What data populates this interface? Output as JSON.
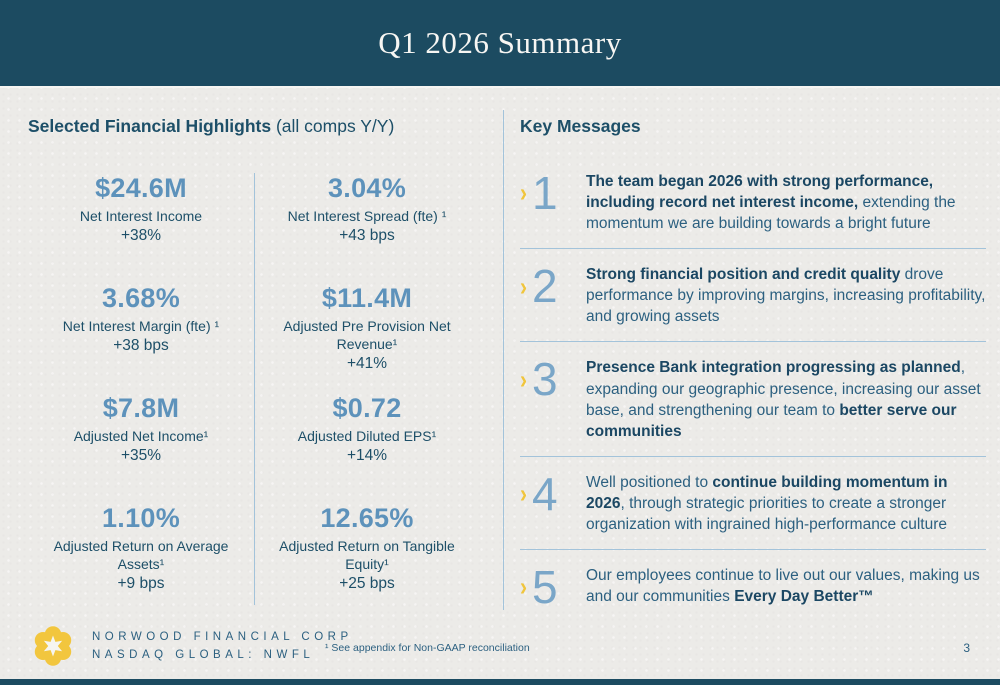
{
  "header": {
    "title": "Q1 2026 Summary"
  },
  "highlights": {
    "heading": "Selected Financial Highlights",
    "heading_suffix": " (all comps Y/Y)",
    "metrics": [
      {
        "value": "$24.6M",
        "label": "Net Interest Income",
        "delta": "+38%"
      },
      {
        "value": "3.04%",
        "label": "Net Interest Spread (fte) ¹",
        "delta": "+43 bps"
      },
      {
        "value": "3.68%",
        "label": "Net Interest Margin (fte) ¹",
        "delta": "+38 bps"
      },
      {
        "value": "$11.4M",
        "label": "Adjusted Pre Provision Net Revenue¹",
        "delta": "+41%"
      },
      {
        "value": "$7.8M",
        "label": "Adjusted Net Income¹",
        "delta": "+35%"
      },
      {
        "value": "$0.72",
        "label": "Adjusted Diluted EPS¹",
        "delta": "+14%"
      },
      {
        "value": "1.10%",
        "label": "Adjusted Return on Average Assets¹",
        "delta": "+9 bps"
      },
      {
        "value": "12.65%",
        "label": "Adjusted Return on Tangible Equity¹",
        "delta": "+25 bps"
      }
    ]
  },
  "key_messages": {
    "heading": "Key Messages",
    "items": [
      {
        "number": "1",
        "segments": [
          {
            "text": "The team began 2026 with strong performance, including record net interest income,",
            "bold": true
          },
          {
            "text": " extending the momentum we are building towards a bright future",
            "bold": false
          }
        ]
      },
      {
        "number": "2",
        "segments": [
          {
            "text": "Strong financial position and credit quality",
            "bold": true
          },
          {
            "text": " drove performance by improving margins, increasing profitability, and growing assets",
            "bold": false
          }
        ]
      },
      {
        "number": "3",
        "segments": [
          {
            "text": "Presence Bank integration progressing as planned",
            "bold": true
          },
          {
            "text": ", expanding our geographic presence, increasing our asset base, and strengthening our team to ",
            "bold": false
          },
          {
            "text": "better serve our communities",
            "bold": true
          }
        ]
      },
      {
        "number": "4",
        "segments": [
          {
            "text": "Well positioned to ",
            "bold": false
          },
          {
            "text": "continue building momentum in 2026",
            "bold": true
          },
          {
            "text": ", through strategic priorities to create a stronger organization with ingrained high-performance culture",
            "bold": false
          }
        ]
      },
      {
        "number": "5",
        "segments": [
          {
            "text": "Our employees continue to live out our values, making us and our communities ",
            "bold": false
          },
          {
            "text": "Every Day Better™",
            "bold": true
          }
        ]
      }
    ]
  },
  "footer": {
    "company_line1": "NORWOOD FINANCIAL CORP",
    "company_line2": "NASDAQ GLOBAL: NWFL",
    "footnote": "¹ See appendix for Non-GAAP reconciliation",
    "page_number": "3",
    "logo_icon": "flower-star-icon",
    "chevron_icon": "chevron-right-icon"
  },
  "colors": {
    "header_bg": "#1c4b61",
    "metric_value": "#5d92bb",
    "dark_teal_text": "#1d4f68",
    "message_regular": "#2c6080",
    "message_bold": "#1b4763",
    "accent_yellow": "#f0c53d",
    "divider_blue": "#a3c3da",
    "background": "#ecebe8",
    "number_blue": "#7aa6c8"
  }
}
